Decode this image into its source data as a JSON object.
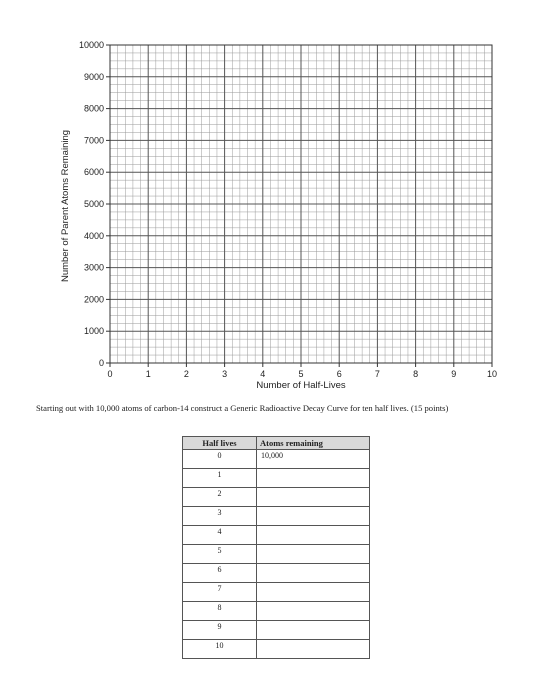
{
  "chart_data": {
    "type": "scatter",
    "xlabel": "Number of Half-Lives",
    "ylabel": "Number of Parent Atoms Remaining",
    "xlim": [
      0,
      10
    ],
    "ylim": [
      0,
      10000
    ],
    "x_ticks": [
      "0",
      "1",
      "2",
      "3",
      "4",
      "5",
      "6",
      "7",
      "8",
      "9",
      "10"
    ],
    "y_ticks": [
      "0",
      "1000",
      "2000",
      "3000",
      "4000",
      "5000",
      "6000",
      "7000",
      "8000",
      "9000",
      "10000"
    ],
    "grid": true,
    "series": []
  },
  "instructions": "Starting out with 10,000 atoms of carbon-14 construct a Generic Radioactive Decay Curve for ten half lives. (15 points)",
  "table": {
    "headers": [
      "Half lives",
      "Atoms remaining"
    ],
    "rows": [
      [
        "0",
        "10,000"
      ],
      [
        "1",
        ""
      ],
      [
        "2",
        ""
      ],
      [
        "3",
        ""
      ],
      [
        "4",
        ""
      ],
      [
        "5",
        ""
      ],
      [
        "6",
        ""
      ],
      [
        "7",
        ""
      ],
      [
        "8",
        ""
      ],
      [
        "9",
        ""
      ],
      [
        "10",
        ""
      ]
    ]
  }
}
